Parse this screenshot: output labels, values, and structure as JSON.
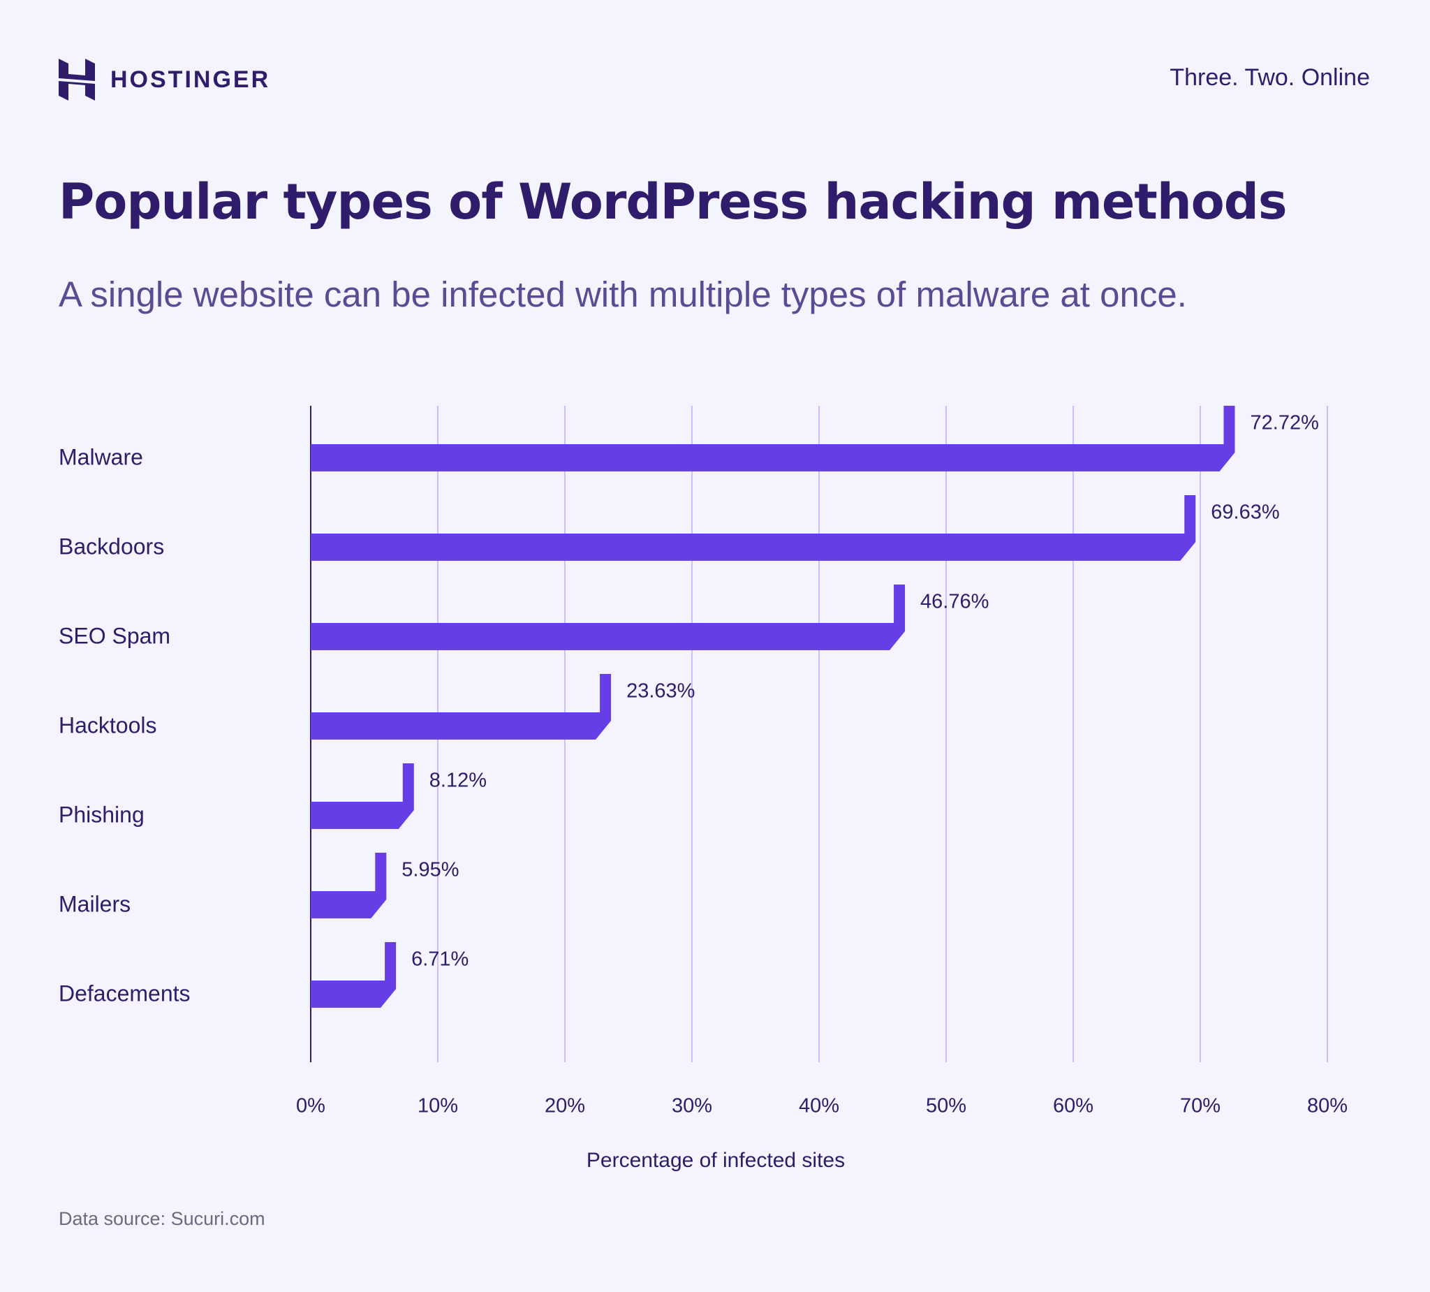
{
  "brand": {
    "name": "HOSTINGER",
    "tagline": "Three. Two. Online"
  },
  "header": {
    "title": "Popular types of WordPress hacking methods",
    "subtitle": "A single website can be infected with multiple types of malware at once."
  },
  "footer": {
    "source": "Data source: Sucuri.com"
  },
  "colors": {
    "background": "#f4f4fe",
    "bar": "#673de6",
    "text": "#2f1c6a",
    "grid": "#c8c0ff"
  },
  "chart_data": {
    "type": "bar",
    "orientation": "horizontal",
    "categories": [
      "Malware",
      "Backdoors",
      "SEO Spam",
      "Hacktools",
      "Phishing",
      "Mailers",
      "Defacements"
    ],
    "values": [
      72.72,
      69.63,
      46.76,
      23.63,
      8.12,
      5.95,
      6.71
    ],
    "data_labels": [
      "72.72%",
      "69.63%",
      "46.76%",
      "23.63%",
      "8.12%",
      "5.95%",
      "6.71%"
    ],
    "xlabel": "Percentage of infected sites",
    "ylabel": "",
    "xlim": [
      0,
      80
    ],
    "xticks": [
      "0%",
      "10%",
      "20%",
      "30%",
      "40%",
      "50%",
      "60%",
      "70%",
      "80%"
    ],
    "grid": "vertical"
  }
}
